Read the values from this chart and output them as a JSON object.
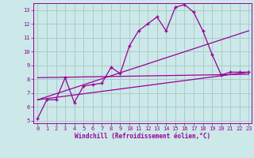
{
  "xlabel": "Windchill (Refroidissement éolien,°C)",
  "bg_color": "#cce8e8",
  "grid_color": "#aacccc",
  "line_color": "#990099",
  "xlim": [
    -0.5,
    23.3
  ],
  "ylim": [
    4.8,
    13.5
  ],
  "xticks": [
    0,
    1,
    2,
    3,
    4,
    5,
    6,
    7,
    8,
    9,
    10,
    11,
    12,
    13,
    14,
    15,
    16,
    17,
    18,
    19,
    20,
    21,
    22,
    23
  ],
  "yticks": [
    5,
    6,
    7,
    8,
    9,
    10,
    11,
    12,
    13
  ],
  "line1_x": [
    0,
    1,
    2,
    3,
    4,
    5,
    6,
    7,
    8,
    9,
    10,
    11,
    12,
    13,
    14,
    15,
    16,
    17,
    18,
    19,
    20,
    21,
    22,
    23
  ],
  "line1_y": [
    5.15,
    6.5,
    6.5,
    8.1,
    6.3,
    7.5,
    7.6,
    7.7,
    8.85,
    8.4,
    10.4,
    11.5,
    12.0,
    12.5,
    11.5,
    13.2,
    13.4,
    12.85,
    11.5,
    9.8,
    8.3,
    8.5,
    8.5,
    8.5
  ],
  "line2_x": [
    0,
    23
  ],
  "line2_y": [
    6.5,
    11.5
  ],
  "line3_x": [
    0,
    23
  ],
  "line3_y": [
    8.1,
    8.35
  ],
  "line4_x": [
    0,
    23
  ],
  "line4_y": [
    6.5,
    8.5
  ]
}
